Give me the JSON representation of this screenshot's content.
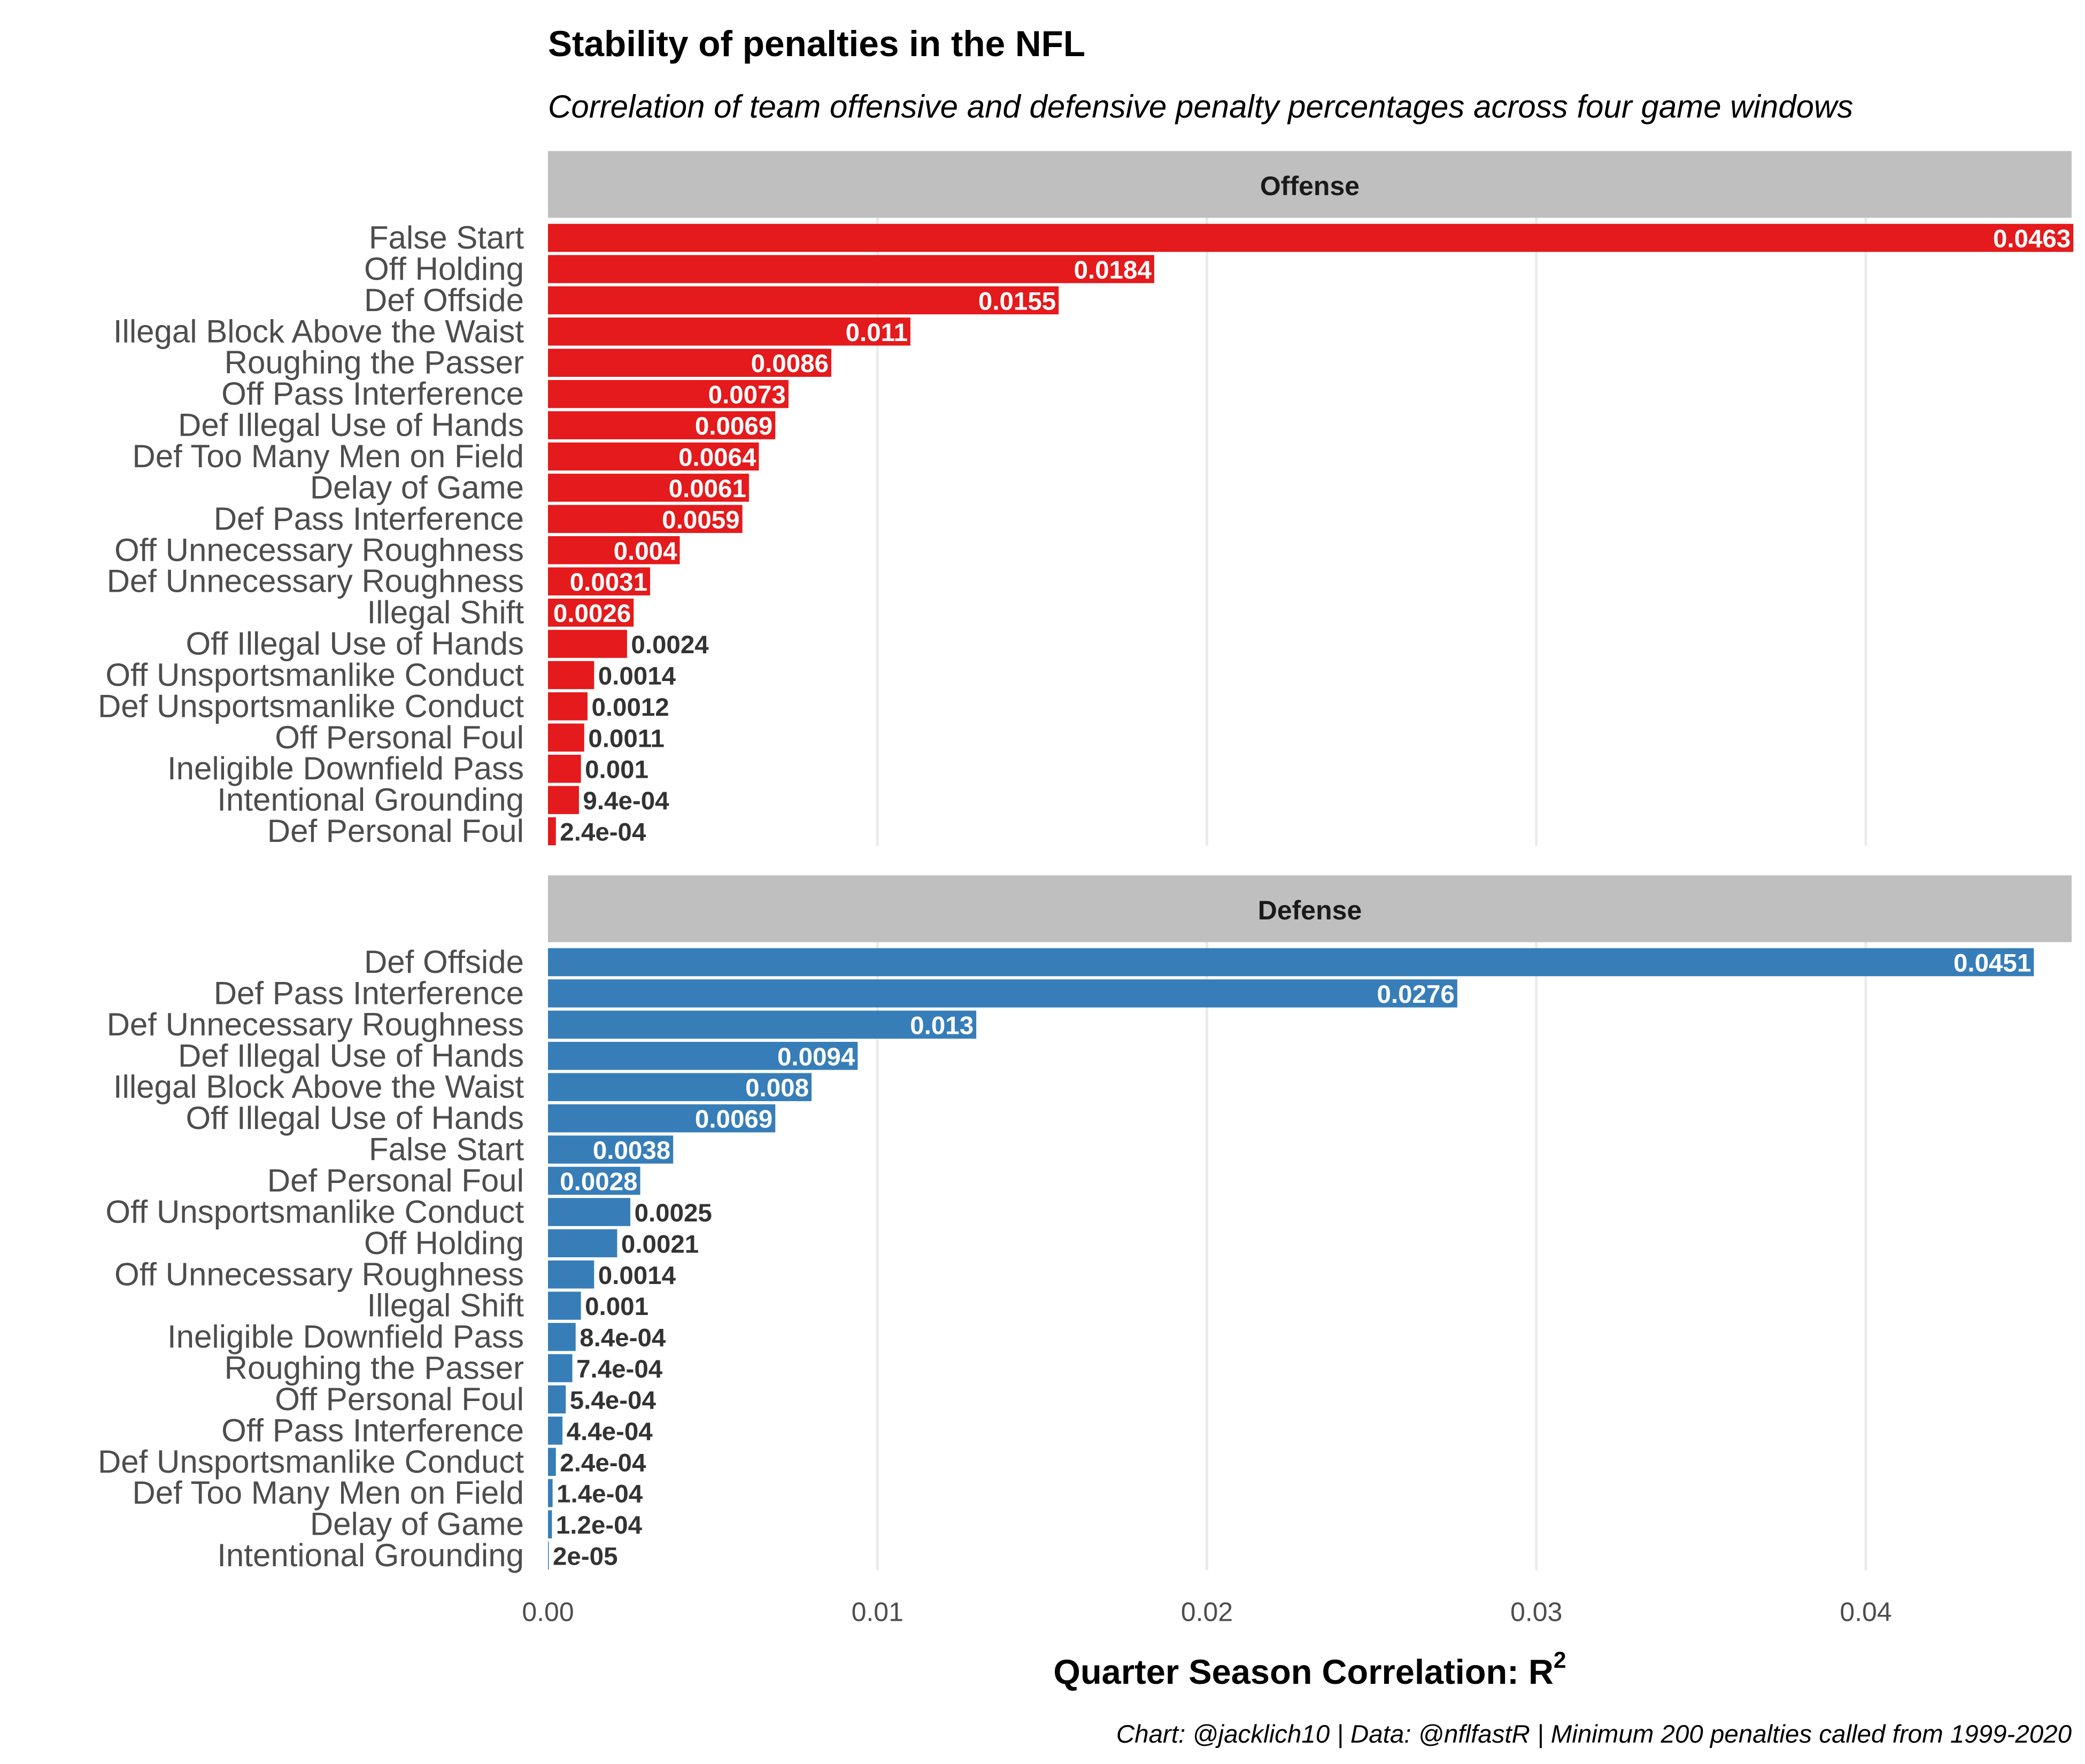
{
  "chart_data": {
    "type": "bar",
    "orientation": "horizontal",
    "title": "Stability of penalties in the NFL",
    "subtitle": "Correlation of team offensive and defensive penalty percentages across four game windows",
    "xlabel": "Quarter Season Correlation: R",
    "xlabel_sup": "2",
    "caption": "Chart: @jacklich10 | Data: @nflfastR | Minimum 200 penalties called from 1999-2020",
    "xlim": [
      0,
      0.0463
    ],
    "xticks": [
      0,
      0.01,
      0.02,
      0.03,
      0.04
    ],
    "xtick_labels": [
      "0.00",
      "0.01",
      "0.02",
      "0.03",
      "0.04"
    ],
    "grid": "vertical major",
    "panels": [
      {
        "name": "Offense",
        "color": "#e41a1c",
        "categories": [
          "False Start",
          "Off Holding",
          "Def Offside",
          "Illegal Block Above the Waist",
          "Roughing the Passer",
          "Off Pass Interference",
          "Def Illegal Use of Hands",
          "Def Too Many Men on Field",
          "Delay of Game",
          "Def Pass Interference",
          "Off Unnecessary Roughness",
          "Def Unnecessary Roughness",
          "Illegal Shift",
          "Off Illegal Use of Hands",
          "Off Unsportsmanlike Conduct",
          "Def Unsportsmanlike Conduct",
          "Off Personal Foul",
          "Ineligible Downfield Pass",
          "Intentional Grounding",
          "Def Personal Foul"
        ],
        "values": [
          0.0463,
          0.0184,
          0.0155,
          0.011,
          0.0086,
          0.0073,
          0.0069,
          0.0064,
          0.0061,
          0.0059,
          0.004,
          0.0031,
          0.0026,
          0.0024,
          0.0014,
          0.0012,
          0.0011,
          0.001,
          0.00094,
          0.00024
        ],
        "labels": [
          "0.0463",
          "0.0184",
          "0.0155",
          "0.011",
          "0.0086",
          "0.0073",
          "0.0069",
          "0.0064",
          "0.0061",
          "0.0059",
          "0.004",
          "0.0031",
          "0.0026",
          "0.0024",
          "0.0014",
          "0.0012",
          "0.0011",
          "0.001",
          "9.4e-04",
          "2.4e-04"
        ]
      },
      {
        "name": "Defense",
        "color": "#377eb8",
        "categories": [
          "Def Offside",
          "Def Pass Interference",
          "Def Unnecessary Roughness",
          "Def Illegal Use of Hands",
          "Illegal Block Above the Waist",
          "Off Illegal Use of Hands",
          "False Start",
          "Def Personal Foul",
          "Off Unsportsmanlike Conduct",
          "Off Holding",
          "Off Unnecessary Roughness",
          "Illegal Shift",
          "Ineligible Downfield Pass",
          "Roughing the Passer",
          "Off Personal Foul",
          "Off Pass Interference",
          "Def Unsportsmanlike Conduct",
          "Def Too Many Men on Field",
          "Delay of Game",
          "Intentional Grounding"
        ],
        "values": [
          0.0451,
          0.0276,
          0.013,
          0.0094,
          0.008,
          0.0069,
          0.0038,
          0.0028,
          0.0025,
          0.0021,
          0.0014,
          0.001,
          0.00084,
          0.00074,
          0.00054,
          0.00044,
          0.00024,
          0.00014,
          0.00012,
          2e-05
        ],
        "labels": [
          "0.0451",
          "0.0276",
          "0.013",
          "0.0094",
          "0.008",
          "0.0069",
          "0.0038",
          "0.0028",
          "0.0025",
          "0.0021",
          "0.0014",
          "0.001",
          "8.4e-04",
          "7.4e-04",
          "5.4e-04",
          "4.4e-04",
          "2.4e-04",
          "1.4e-04",
          "1.2e-04",
          "2e-05"
        ]
      }
    ]
  }
}
